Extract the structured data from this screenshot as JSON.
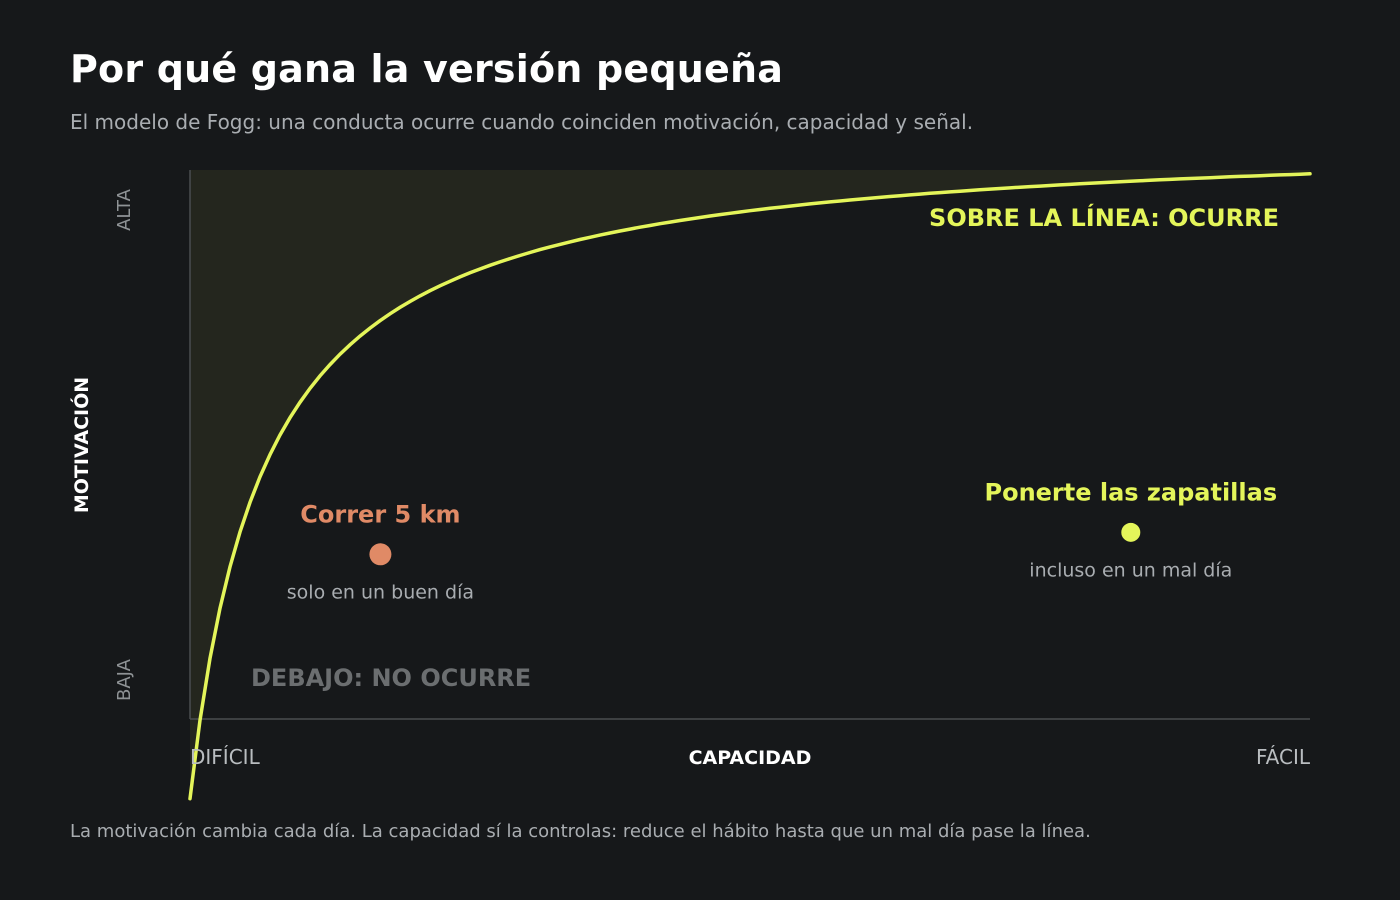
{
  "header": {
    "title": "Por qué gana la versión pequeña",
    "subtitle": "El modelo de Fogg: una conducta ocurre cuando coinciden motivación, capacidad y señal."
  },
  "diagram": {
    "region_above_label": "SOBRE LA LÍNEA: OCURRE",
    "region_below_label": "DEBAJO: NO OCURRE",
    "y_axis": {
      "title": "MOTIVACIÓN",
      "high": "ALTA",
      "low": "BAJA"
    },
    "x_axis": {
      "title": "CAPACIDAD",
      "left": "DIFÍCIL",
      "right": "FÁCIL"
    },
    "points": [
      {
        "label": "Correr 5 km",
        "note": "solo en un buen día",
        "color": "#e08a66",
        "capacity": 0.17,
        "motivation": 0.3
      },
      {
        "label": "Ponerte las zapatillas",
        "note": "incluso en un mal día",
        "color": "#e4f55a",
        "capacity": 0.84,
        "motivation": 0.34
      }
    ],
    "colors": {
      "curve": "#e4f55a",
      "region_above": "#24261e",
      "background": "#16181a"
    }
  },
  "footer": {
    "note": "La motivación cambia cada día. La capacidad sí la controlas: reduce el hábito hasta que un mal día pase la línea."
  }
}
